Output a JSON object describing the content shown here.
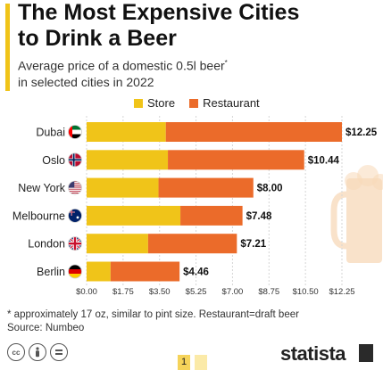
{
  "header": {
    "title_line1": "The Most Expensive Cities",
    "title_line2": "to Drink a Beer",
    "subtitle_line1": "Average price of a domestic 0.5l beer",
    "subtitle_mark": "*",
    "subtitle_line2": "in selected cities in 2022"
  },
  "footer": {
    "footnote": "* approximately 17 oz, similar to pint size. Restaurant=draft beer",
    "source": "Source: Numbeo",
    "brand": "statista",
    "page_number": "1"
  },
  "colors": {
    "store": "#f0c419",
    "restaurant": "#eb6b2a",
    "grid": "#d6d6d6",
    "beer_glass": "#f7d8b8"
  },
  "chart_data": {
    "type": "bar",
    "orientation": "horizontal",
    "stacked": true,
    "categories": [
      "Dubai",
      "Oslo",
      "New York",
      "Melbourne",
      "London",
      "Berlin"
    ],
    "flags": [
      "uae-flag-icon",
      "norway-flag-icon",
      "usa-flag-icon",
      "australia-flag-icon",
      "uk-flag-icon",
      "germany-flag-icon"
    ],
    "series": [
      {
        "name": "Store",
        "values": [
          3.8,
          3.9,
          3.45,
          4.5,
          2.95,
          1.15
        ]
      },
      {
        "name": "Restaurant",
        "values": [
          8.45,
          6.54,
          4.55,
          2.98,
          4.26,
          3.31
        ]
      }
    ],
    "totals": [
      12.25,
      10.44,
      8.0,
      7.48,
      7.21,
      4.46
    ],
    "total_labels": [
      "$12.25",
      "$10.44",
      "$8.00",
      "$7.48",
      "$7.21",
      "$4.46"
    ],
    "xlim": [
      0,
      12.25
    ],
    "xticks": [
      0,
      1.75,
      3.5,
      5.25,
      7,
      8.75,
      10.5,
      12.25
    ],
    "xtick_labels": [
      "$0.00",
      "$1.75",
      "$3.50",
      "$5.25",
      "$7.00",
      "$8.75",
      "$10.50",
      "$12.25"
    ],
    "grid": true,
    "legend": "top"
  }
}
